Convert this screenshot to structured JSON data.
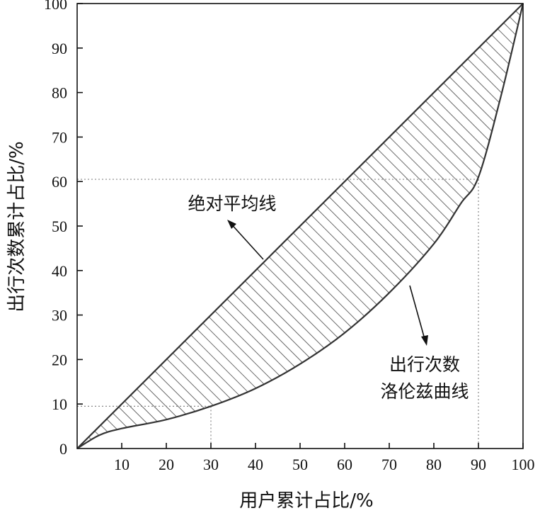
{
  "chart_data": {
    "type": "line",
    "xlabel": "用户累计占比/%",
    "ylabel": "出行次数累计占比/%",
    "xlim": [
      0,
      100
    ],
    "ylim": [
      0,
      100
    ],
    "x_ticks": [
      10,
      20,
      30,
      40,
      50,
      60,
      70,
      80,
      90,
      100
    ],
    "y_ticks": [
      0,
      10,
      20,
      30,
      40,
      50,
      60,
      70,
      80,
      90,
      100
    ],
    "grid": false,
    "series": [
      {
        "name": "绝对平均线",
        "x": [
          0,
          100
        ],
        "y": [
          0,
          100
        ]
      },
      {
        "name": "出行次数洛伦兹曲线",
        "x": [
          0,
          5,
          10,
          20,
          30,
          40,
          50,
          60,
          70,
          80,
          86,
          90,
          95,
          100
        ],
        "y": [
          0,
          3,
          4.5,
          6.5,
          9.5,
          13.5,
          19,
          26,
          35,
          46,
          55,
          61,
          79,
          100
        ]
      }
    ],
    "shaded_region": "between 绝对平均线 and 出行次数洛伦兹曲线",
    "reference_lines": [
      {
        "x": 30,
        "y": 9.5
      },
      {
        "x": 90,
        "y": 60.5
      }
    ],
    "annotations": [
      {
        "text": "绝对平均线",
        "points_to": "绝对平均线"
      },
      {
        "lines": [
          "出行次数",
          "洛伦兹曲线"
        ],
        "points_to": "出行次数洛伦兹曲线"
      }
    ],
    "colors": {
      "line": "#333333",
      "hatch": "#444444",
      "reference": "#888888"
    }
  }
}
